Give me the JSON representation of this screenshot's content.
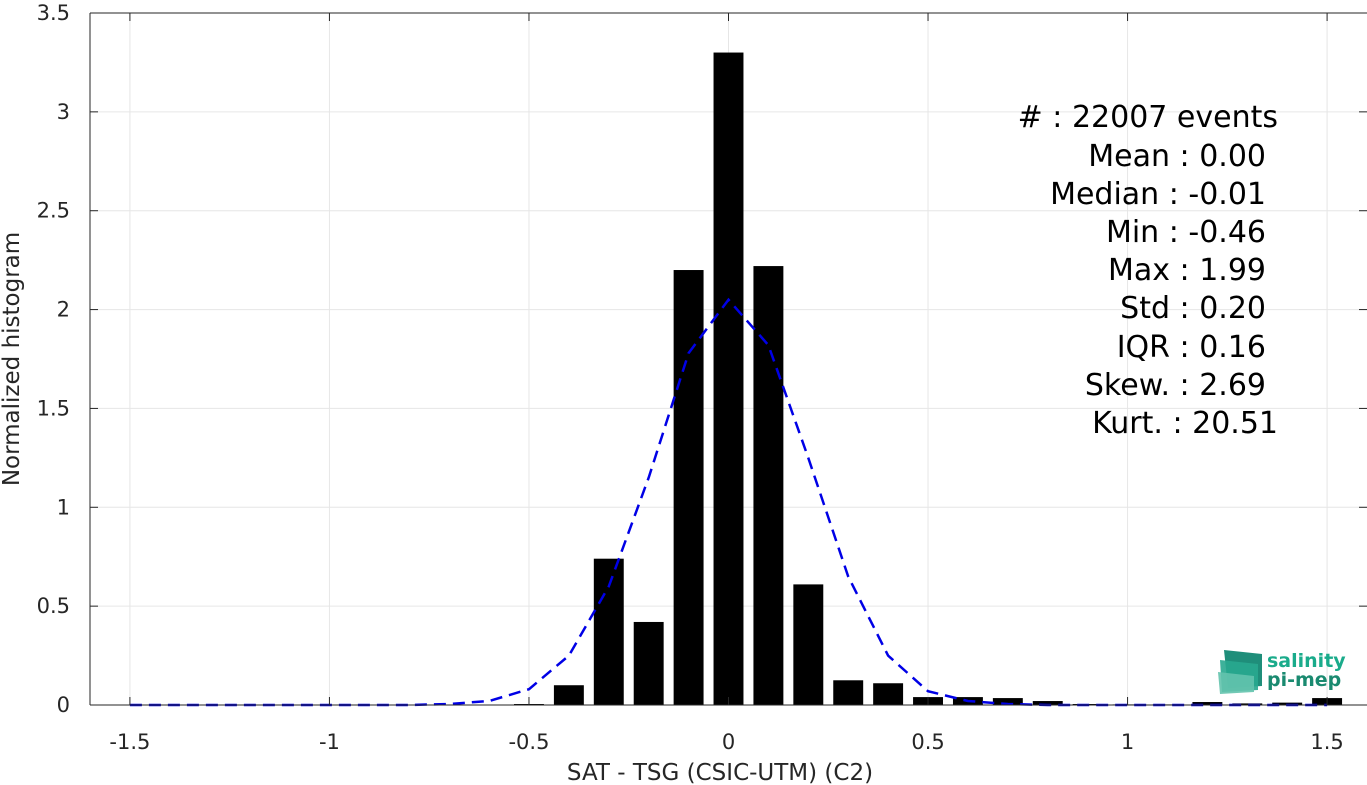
{
  "chart_data": {
    "type": "bar",
    "title": "",
    "xlabel": "SAT - TSG (CSIC-UTM) (C2)",
    "ylabel": "Normalized histogram",
    "xlim": [
      -1.6,
      1.6
    ],
    "ylim": [
      0,
      3.5
    ],
    "xticks": [
      -1.5,
      -1,
      -0.5,
      0,
      0.5,
      1,
      1.5
    ],
    "xtick_labels": [
      "-1.5",
      "-1",
      "-0.5",
      "0",
      "0.5",
      "1",
      "1.5"
    ],
    "yticks": [
      0,
      0.5,
      1,
      1.5,
      2,
      2.5,
      3,
      3.5
    ],
    "ytick_labels": [
      "0",
      "0.5",
      "1",
      "1.5",
      "2",
      "2.5",
      "3",
      "3.5"
    ],
    "grid": true,
    "bar_width": 0.075,
    "bars": {
      "x": [
        -0.5,
        -0.4,
        -0.3,
        -0.2,
        -0.1,
        0.0,
        0.1,
        0.2,
        0.3,
        0.4,
        0.5,
        0.6,
        0.7,
        0.8,
        0.9,
        1.0,
        1.1,
        1.2,
        1.3,
        1.4,
        1.5
      ],
      "values": [
        0.005,
        0.1,
        0.74,
        0.42,
        2.2,
        3.3,
        2.22,
        0.61,
        0.125,
        0.11,
        0.04,
        0.04,
        0.035,
        0.02,
        0.005,
        0.003,
        0.003,
        0.015,
        0.008,
        0.012,
        0.035
      ],
      "color": "#000000"
    },
    "fit_curve": {
      "style": "dashed",
      "color": "#0000e6",
      "x": [
        -1.5,
        -1.4,
        -1.3,
        -1.2,
        -1.1,
        -1.0,
        -0.9,
        -0.8,
        -0.7,
        -0.6,
        -0.5,
        -0.4,
        -0.3,
        -0.2,
        -0.1,
        0.0,
        0.1,
        0.2,
        0.3,
        0.4,
        0.5,
        0.6,
        0.7,
        0.8,
        0.9,
        1.0,
        1.1,
        1.2,
        1.3,
        1.4,
        1.5
      ],
      "y": [
        0,
        0,
        0,
        0,
        0,
        0,
        0,
        0,
        0.005,
        0.02,
        0.08,
        0.25,
        0.6,
        1.15,
        1.78,
        2.05,
        1.82,
        1.25,
        0.65,
        0.25,
        0.07,
        0.02,
        0.005,
        0,
        0,
        0,
        0,
        0,
        0,
        0,
        0
      ]
    },
    "stats": [
      {
        "key": "#  ",
        "value": ": 22007 events"
      },
      {
        "key": "Mean",
        "value": ": 0.00"
      },
      {
        "key": "Median",
        "value": ": -0.01"
      },
      {
        "key": "Min",
        "value": ": -0.46"
      },
      {
        "key": "Max",
        "value": ": 1.99"
      },
      {
        "key": "Std",
        "value": ": 0.20"
      },
      {
        "key": "IQR",
        "value": ": 0.16"
      },
      {
        "key": "Skew.",
        "value": ": 2.69"
      },
      {
        "key": "Kurt.",
        "value": ": 20.51"
      }
    ]
  },
  "logo": {
    "line1": "salinity",
    "line2": "pi-mep",
    "color": "#1aab8b"
  }
}
